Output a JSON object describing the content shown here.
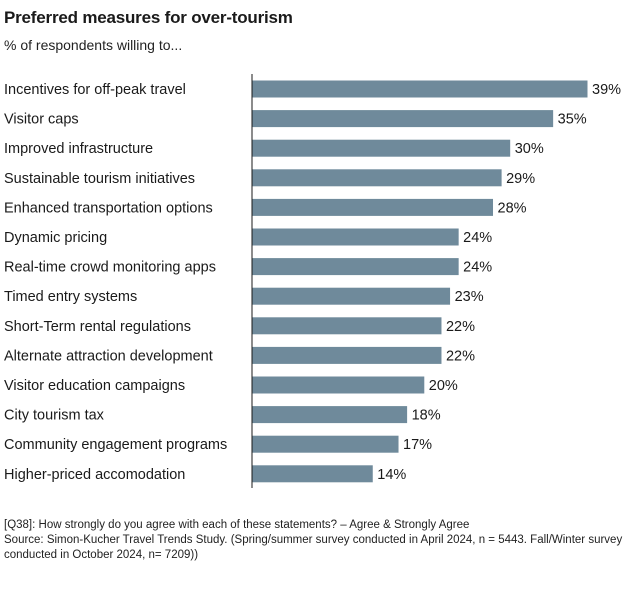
{
  "chart_data": {
    "type": "bar",
    "orientation": "horizontal",
    "title": "Preferred measures for over-tourism",
    "subtitle": "% of respondents willing to...",
    "categories": [
      "Incentives for off-peak travel",
      "Visitor caps",
      "Improved infrastructure",
      "Sustainable tourism initiatives",
      "Enhanced transportation options",
      "Dynamic pricing",
      "Real-time crowd monitoring apps",
      "Timed entry systems",
      "Short-Term rental regulations",
      "Alternate attraction development",
      "Visitor education campaigns",
      "City tourism tax",
      "Community engagement programs",
      "Higher-priced accomodation"
    ],
    "values": [
      39,
      35,
      30,
      29,
      28,
      24,
      24,
      23,
      22,
      22,
      20,
      18,
      17,
      14
    ],
    "value_labels": [
      "39%",
      "35%",
      "30%",
      "29%",
      "28%",
      "24%",
      "24%",
      "23%",
      "22%",
      "22%",
      "20%",
      "18%",
      "17%",
      "14%"
    ],
    "xlim": [
      0,
      39
    ],
    "grid": false,
    "bar_color": "#6f8a9b"
  },
  "footnote": "[Q38]: How strongly do you agree with each of these statements? – Agree & Strongly Agree",
  "source": "Source:  Simon-Kucher Travel Trends Study. (Spring/summer survey conducted in April 2024, n = 5443. Fall/Winter survey conducted in October 2024, n= 7209))"
}
